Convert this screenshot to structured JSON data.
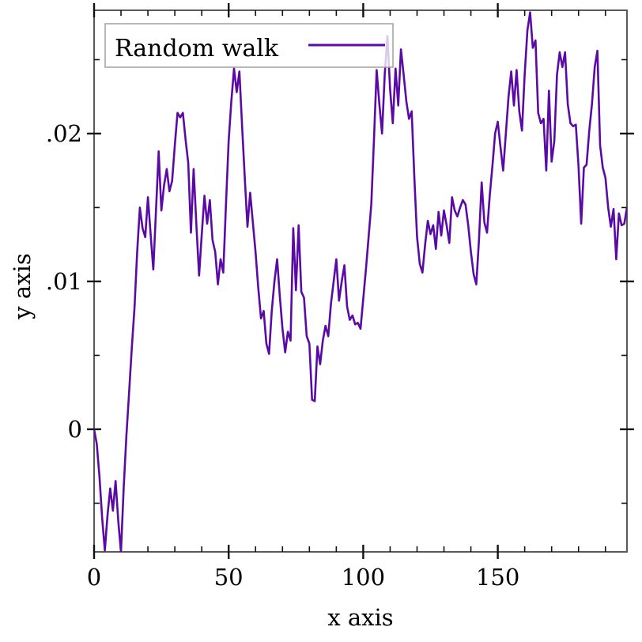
{
  "figure": {
    "background": "#ffffff",
    "frame_color": "#5a5a5a",
    "tick_color": "#111111",
    "text_color": "#000000"
  },
  "legend": {
    "label": "Random walk",
    "line_color": "#5b0ba5",
    "box_fill": "rgba(255,255,255,0.78)",
    "box_border": "#a0a0a0"
  },
  "chart_data": {
    "type": "line",
    "title": "",
    "xlabel": "x axis",
    "ylabel": "y axis",
    "xlim": [
      0,
      198
    ],
    "ylim": [
      -0.00829,
      0.02834
    ],
    "x_major_ticks": [
      0,
      50,
      100,
      150
    ],
    "x_major_labels": [
      "0",
      "50",
      "100",
      "150"
    ],
    "x_minor_ticks": [
      10,
      20,
      30,
      40,
      60,
      70,
      80,
      90,
      110,
      120,
      130,
      140,
      160,
      170,
      180,
      190
    ],
    "y_major_ticks": [
      0,
      0.01,
      0.02
    ],
    "y_major_labels": [
      "0",
      ".01",
      ".02"
    ],
    "y_minor_ticks": [
      -0.005,
      0.005,
      0.015,
      0.025
    ],
    "grid": false,
    "legend_position": "top-left-inside",
    "series": [
      {
        "name": "Random walk",
        "color": "#5b0ba5",
        "points": [
          [
            0,
            0.0
          ],
          [
            1,
            -0.001
          ],
          [
            2,
            -0.0032
          ],
          [
            3,
            -0.006
          ],
          [
            4,
            -0.0082
          ],
          [
            5,
            -0.0058
          ],
          [
            6,
            -0.004
          ],
          [
            7,
            -0.0055
          ],
          [
            8,
            -0.0035
          ],
          [
            9,
            -0.0062
          ],
          [
            10,
            -0.0083
          ],
          [
            11,
            -0.004
          ],
          [
            12,
            -0.0005
          ],
          [
            13,
            0.0025
          ],
          [
            14,
            0.0055
          ],
          [
            15,
            0.0082
          ],
          [
            16,
            0.012
          ],
          [
            17,
            0.015
          ],
          [
            18,
            0.0136
          ],
          [
            19,
            0.013
          ],
          [
            20,
            0.0157
          ],
          [
            21,
            0.0132
          ],
          [
            22,
            0.0108
          ],
          [
            23,
            0.0148
          ],
          [
            24,
            0.0188
          ],
          [
            25,
            0.0148
          ],
          [
            26,
            0.0165
          ],
          [
            27,
            0.0176
          ],
          [
            28,
            0.0161
          ],
          [
            29,
            0.0168
          ],
          [
            30,
            0.0192
          ],
          [
            31,
            0.0214
          ],
          [
            32,
            0.0211
          ],
          [
            33,
            0.0214
          ],
          [
            34,
            0.0196
          ],
          [
            35,
            0.018
          ],
          [
            36,
            0.0133
          ],
          [
            37,
            0.0176
          ],
          [
            38,
            0.0138
          ],
          [
            39,
            0.0104
          ],
          [
            40,
            0.0132
          ],
          [
            41,
            0.0158
          ],
          [
            42,
            0.0139
          ],
          [
            43,
            0.0155
          ],
          [
            44,
            0.0128
          ],
          [
            45,
            0.012
          ],
          [
            46,
            0.0098
          ],
          [
            47,
            0.0115
          ],
          [
            48,
            0.0106
          ],
          [
            49,
            0.0152
          ],
          [
            50,
            0.0195
          ],
          [
            51,
            0.0222
          ],
          [
            52,
            0.0244
          ],
          [
            53,
            0.0228
          ],
          [
            54,
            0.0242
          ],
          [
            55,
            0.0205
          ],
          [
            56,
            0.017
          ],
          [
            57,
            0.0137
          ],
          [
            58,
            0.016
          ],
          [
            59,
            0.014
          ],
          [
            60,
            0.012
          ],
          [
            61,
            0.0096
          ],
          [
            62,
            0.0075
          ],
          [
            63,
            0.008
          ],
          [
            64,
            0.0058
          ],
          [
            65,
            0.0051
          ],
          [
            66,
            0.008
          ],
          [
            67,
            0.01
          ],
          [
            68,
            0.0115
          ],
          [
            69,
            0.009
          ],
          [
            70,
            0.0068
          ],
          [
            71,
            0.0052
          ],
          [
            72,
            0.0066
          ],
          [
            73,
            0.006
          ],
          [
            74,
            0.0136
          ],
          [
            75,
            0.0094
          ],
          [
            76,
            0.0138
          ],
          [
            77,
            0.0093
          ],
          [
            78,
            0.0089
          ],
          [
            79,
            0.0063
          ],
          [
            80,
            0.0058
          ],
          [
            81,
            0.002
          ],
          [
            82,
            0.0019
          ],
          [
            83,
            0.0056
          ],
          [
            84,
            0.0044
          ],
          [
            85,
            0.006
          ],
          [
            86,
            0.007
          ],
          [
            87,
            0.0063
          ],
          [
            88,
            0.0085
          ],
          [
            89,
            0.01
          ],
          [
            90,
            0.0115
          ],
          [
            91,
            0.0087
          ],
          [
            92,
            0.01
          ],
          [
            93,
            0.0111
          ],
          [
            94,
            0.0083
          ],
          [
            95,
            0.0074
          ],
          [
            96,
            0.0077
          ],
          [
            97,
            0.0071
          ],
          [
            98,
            0.0072
          ],
          [
            99,
            0.0068
          ],
          [
            100,
            0.0088
          ],
          [
            101,
            0.0108
          ],
          [
            102,
            0.013
          ],
          [
            103,
            0.0152
          ],
          [
            104,
            0.0196
          ],
          [
            105,
            0.0243
          ],
          [
            106,
            0.022
          ],
          [
            107,
            0.02
          ],
          [
            108,
            0.024
          ],
          [
            109,
            0.0266
          ],
          [
            110,
            0.023
          ],
          [
            111,
            0.0207
          ],
          [
            112,
            0.0244
          ],
          [
            113,
            0.0219
          ],
          [
            114,
            0.0257
          ],
          [
            115,
            0.024
          ],
          [
            116,
            0.0222
          ],
          [
            117,
            0.021
          ],
          [
            118,
            0.0215
          ],
          [
            119,
            0.017
          ],
          [
            120,
            0.013
          ],
          [
            121,
            0.0112
          ],
          [
            122,
            0.0106
          ],
          [
            123,
            0.0125
          ],
          [
            124,
            0.0141
          ],
          [
            125,
            0.0132
          ],
          [
            126,
            0.0138
          ],
          [
            127,
            0.0122
          ],
          [
            128,
            0.0147
          ],
          [
            129,
            0.0131
          ],
          [
            130,
            0.0148
          ],
          [
            131,
            0.0138
          ],
          [
            132,
            0.0126
          ],
          [
            133,
            0.0157
          ],
          [
            134,
            0.0148
          ],
          [
            135,
            0.0144
          ],
          [
            136,
            0.015
          ],
          [
            137,
            0.0155
          ],
          [
            138,
            0.0152
          ],
          [
            139,
            0.0138
          ],
          [
            140,
            0.012
          ],
          [
            141,
            0.0105
          ],
          [
            142,
            0.0098
          ],
          [
            143,
            0.0128
          ],
          [
            144,
            0.0167
          ],
          [
            145,
            0.014
          ],
          [
            146,
            0.0133
          ],
          [
            147,
            0.0158
          ],
          [
            148,
            0.0178
          ],
          [
            149,
            0.02
          ],
          [
            150,
            0.0208
          ],
          [
            151,
            0.0191
          ],
          [
            152,
            0.0175
          ],
          [
            153,
            0.02
          ],
          [
            154,
            0.0225
          ],
          [
            155,
            0.0242
          ],
          [
            156,
            0.0219
          ],
          [
            157,
            0.0243
          ],
          [
            158,
            0.0215
          ],
          [
            159,
            0.0202
          ],
          [
            160,
            0.024
          ],
          [
            161,
            0.027
          ],
          [
            162,
            0.0282
          ],
          [
            163,
            0.0258
          ],
          [
            164,
            0.0263
          ],
          [
            165,
            0.0214
          ],
          [
            166,
            0.0207
          ],
          [
            167,
            0.021
          ],
          [
            168,
            0.0175
          ],
          [
            169,
            0.0229
          ],
          [
            170,
            0.0181
          ],
          [
            171,
            0.0195
          ],
          [
            172,
            0.024
          ],
          [
            173,
            0.0255
          ],
          [
            174,
            0.0245
          ],
          [
            175,
            0.0255
          ],
          [
            176,
            0.022
          ],
          [
            177,
            0.0207
          ],
          [
            178,
            0.0205
          ],
          [
            179,
            0.0206
          ],
          [
            180,
            0.0178
          ],
          [
            181,
            0.0139
          ],
          [
            182,
            0.0177
          ],
          [
            183,
            0.0179
          ],
          [
            184,
            0.0202
          ],
          [
            185,
            0.022
          ],
          [
            186,
            0.0245
          ],
          [
            187,
            0.0256
          ],
          [
            188,
            0.0192
          ],
          [
            189,
            0.0177
          ],
          [
            190,
            0.017
          ],
          [
            191,
            0.015
          ],
          [
            192,
            0.0137
          ],
          [
            193,
            0.0149
          ],
          [
            194,
            0.0115
          ],
          [
            195,
            0.0146
          ],
          [
            196,
            0.0138
          ],
          [
            197,
            0.0139
          ],
          [
            198,
            0.015
          ]
        ]
      }
    ]
  }
}
